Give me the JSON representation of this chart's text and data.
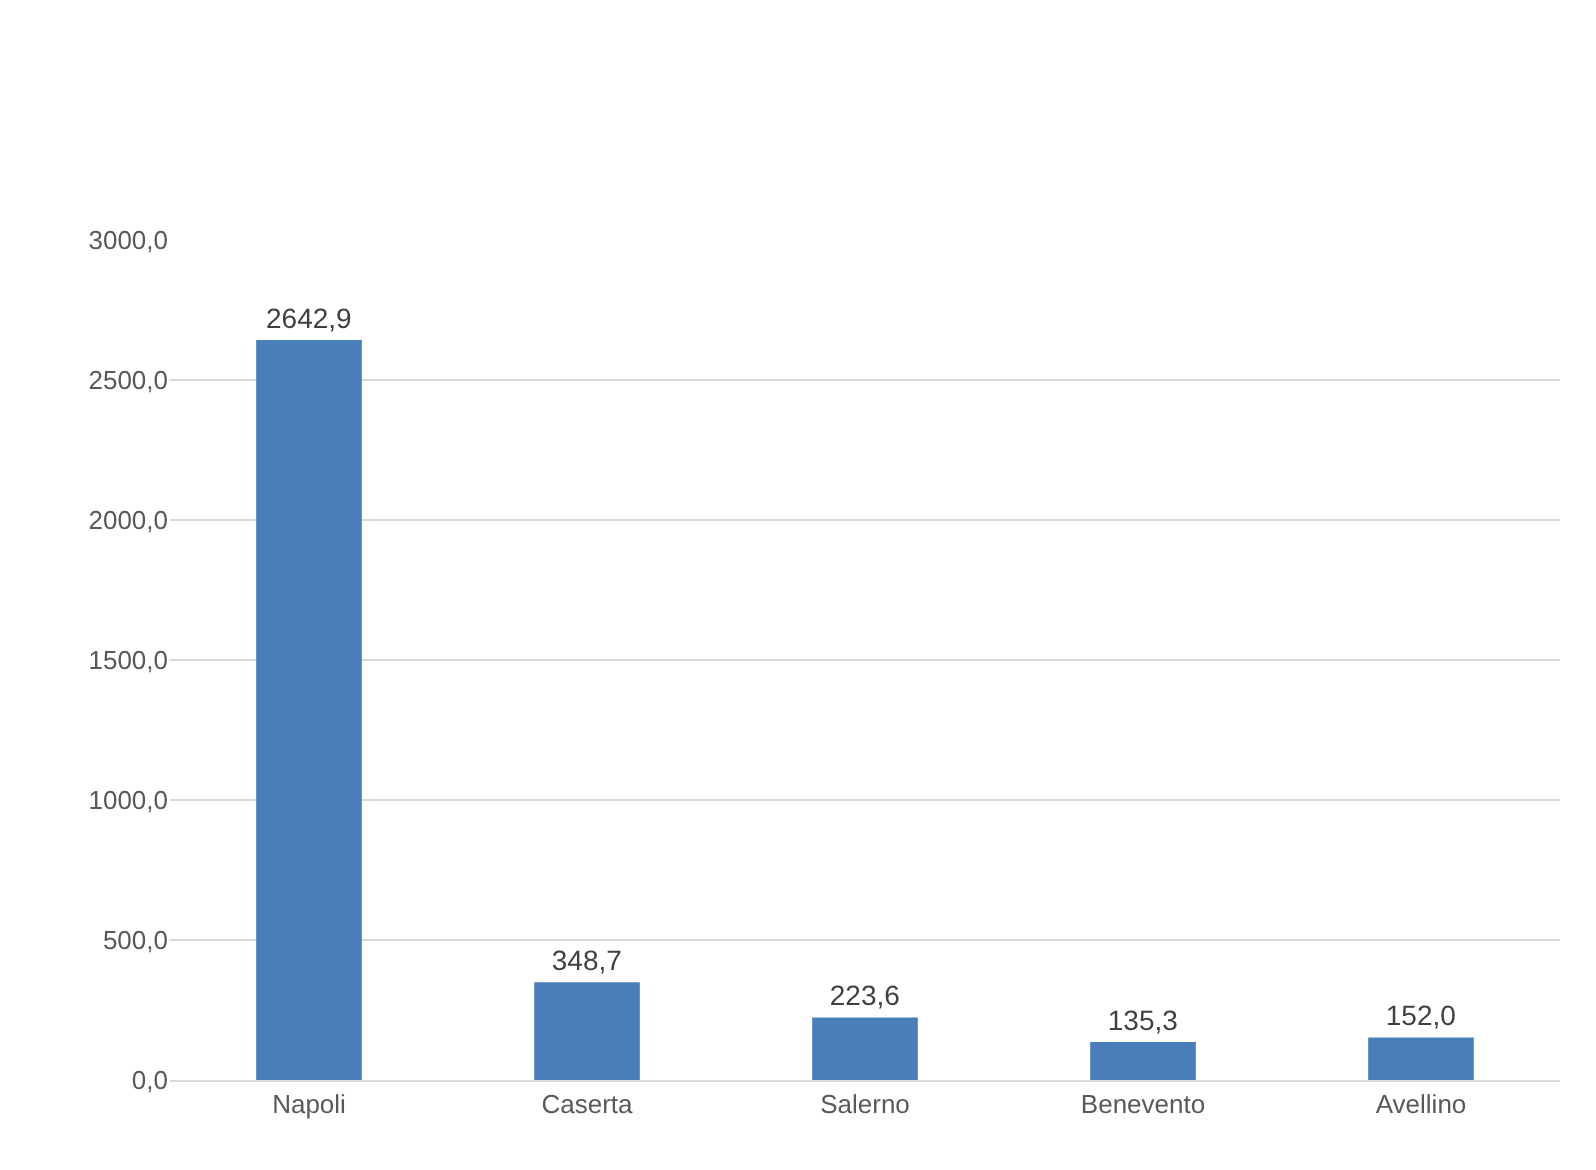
{
  "chart_data": {
    "type": "bar",
    "categories": [
      "Napoli",
      "Caserta",
      "Salerno",
      "Benevento",
      "Avellino"
    ],
    "values": [
      2642.9,
      348.7,
      223.6,
      135.3,
      152.0
    ],
    "value_labels": [
      "2642,9",
      "348,7",
      "223,6",
      "135,3",
      "152,0"
    ],
    "color": "#4a7ebb",
    "ylim": [
      0,
      3000
    ],
    "yticks": [
      {
        "value": 0,
        "label": "0,0"
      },
      {
        "value": 500,
        "label": "500,0"
      },
      {
        "value": 1000,
        "label": "1000,0"
      },
      {
        "value": 1500,
        "label": "1500,0"
      },
      {
        "value": 2000,
        "label": "2000,0"
      },
      {
        "value": 2500,
        "label": "2500,0"
      },
      {
        "value": 3000,
        "label": "3000,0"
      }
    ],
    "grid": "y"
  }
}
